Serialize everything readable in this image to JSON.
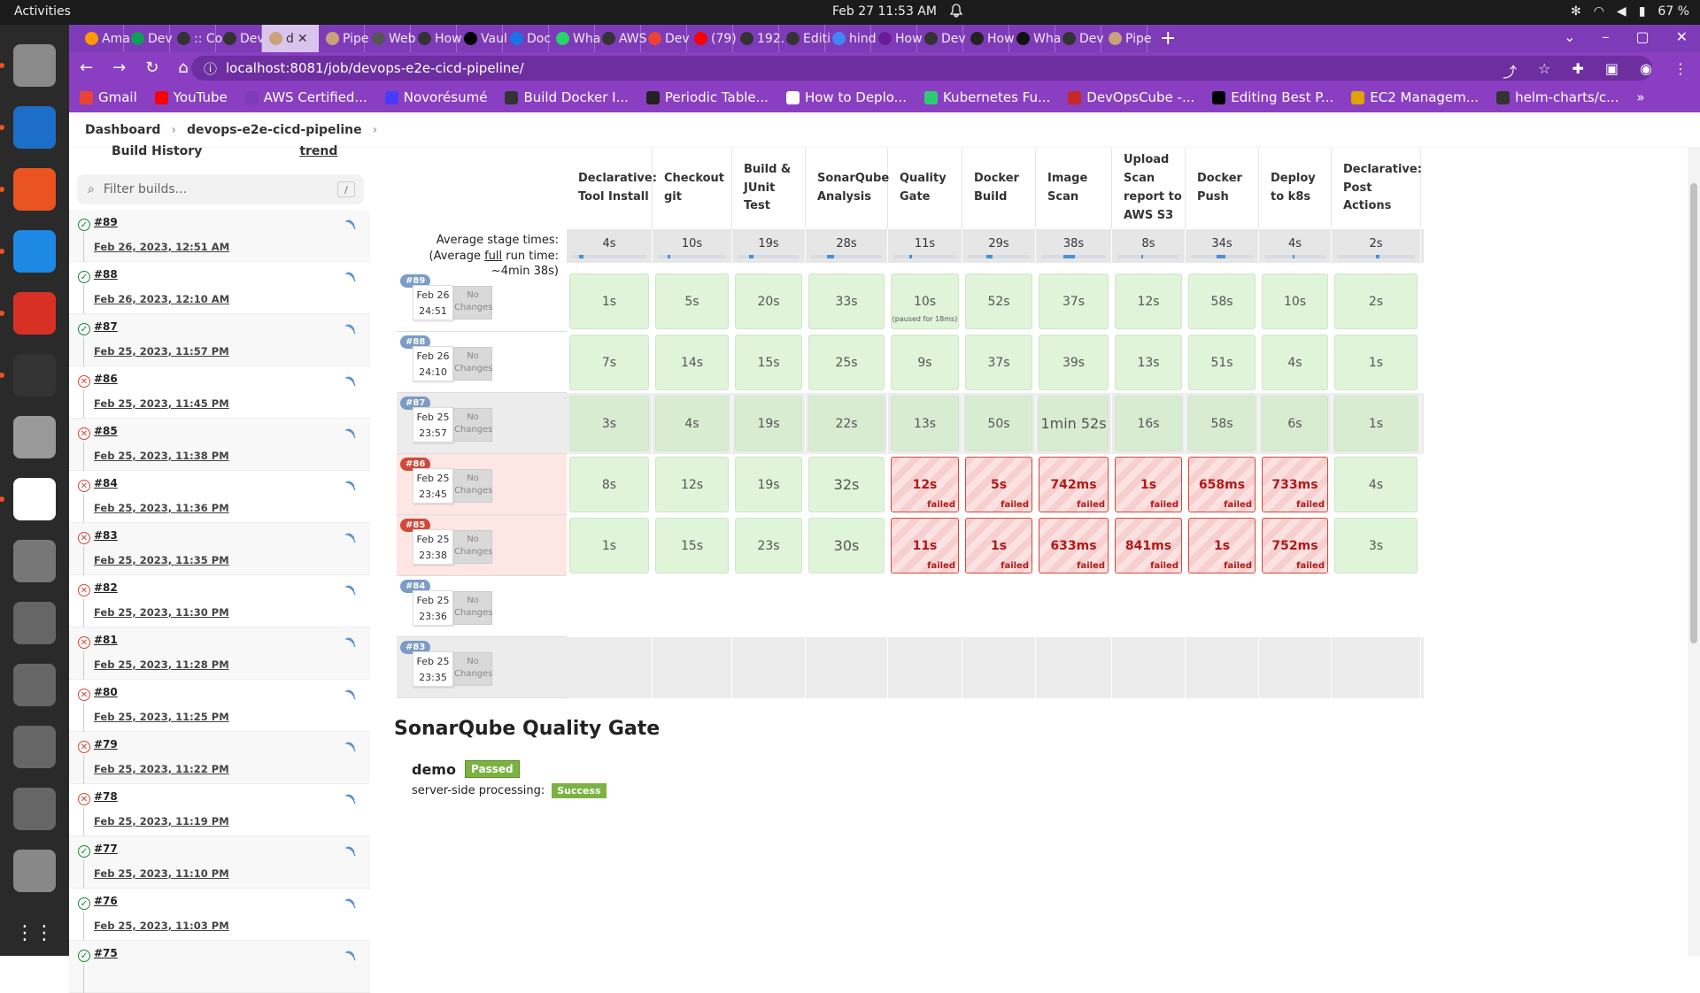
{
  "system": {
    "activities": "Activities",
    "clock": "Feb 27  11:53 AM",
    "battery": "67 %"
  },
  "dock": [
    {
      "name": "files-icon",
      "color": "#8a8a8a"
    },
    {
      "name": "writer-icon",
      "color": "#1c6ec8"
    },
    {
      "name": "software-icon",
      "color": "#e95420"
    },
    {
      "name": "vscode-icon",
      "color": "#1e88e5"
    },
    {
      "name": "chrome-icon",
      "color": "#d93025"
    },
    {
      "name": "terminal-icon",
      "color": "#333"
    },
    {
      "name": "screenshot-icon",
      "color": "#999"
    },
    {
      "name": "slack-icon",
      "color": "#ffffff"
    },
    {
      "name": "editor-icon",
      "color": "#777"
    },
    {
      "name": "disk-icon",
      "color": "#666"
    },
    {
      "name": "disk-icon",
      "color": "#666"
    },
    {
      "name": "disk-icon",
      "color": "#666"
    },
    {
      "name": "disk-icon",
      "color": "#666"
    },
    {
      "name": "drive-icon",
      "color": "#888"
    },
    {
      "name": "apps-grid-icon",
      "color": "#2a2a2a"
    }
  ],
  "tabs": [
    {
      "label": "Ama",
      "color": "#ff9900"
    },
    {
      "label": "Dev",
      "color": "#0f9d58"
    },
    {
      "label": ":: Co",
      "color": "#333"
    },
    {
      "label": "Dev",
      "color": "#333"
    },
    {
      "label": "d",
      "color": "#c9a27a",
      "active": true
    },
    {
      "label": "Pipe",
      "color": "#c9a27a"
    },
    {
      "label": "Web",
      "color": "#555"
    },
    {
      "label": "How",
      "color": "#333"
    },
    {
      "label": "Vaul",
      "color": "#000"
    },
    {
      "label": "Doc",
      "color": "#1a73e8"
    },
    {
      "label": "Wha",
      "color": "#25d366"
    },
    {
      "label": "AWS",
      "color": "#333"
    },
    {
      "label": "Dev",
      "color": "#ea4335"
    },
    {
      "label": "(79)",
      "color": "#ff0000"
    },
    {
      "label": "192.",
      "color": "#333"
    },
    {
      "label": "Editi",
      "color": "#333"
    },
    {
      "label": "hind",
      "color": "#4285f4"
    },
    {
      "label": "How",
      "color": "#6a1b9a"
    },
    {
      "label": "Dev",
      "color": "#333"
    },
    {
      "label": "How",
      "color": "#222"
    },
    {
      "label": "Wha",
      "color": "#111"
    },
    {
      "label": "Dev",
      "color": "#333"
    },
    {
      "label": "Pipe",
      "color": "#c9a27a"
    }
  ],
  "url": "localhost:8081/job/devops-e2e-cicd-pipeline/",
  "bookmarks": [
    {
      "label": "Gmail",
      "color": "#ea4335"
    },
    {
      "label": "YouTube",
      "color": "#ff0000"
    },
    {
      "label": "AWS Certified...",
      "color": "#7e3bb7"
    },
    {
      "label": "Novorésumé",
      "color": "#4a3aff"
    },
    {
      "label": "Build Docker I...",
      "color": "#333"
    },
    {
      "label": "Periodic Table...",
      "color": "#222"
    },
    {
      "label": "How to Deplo...",
      "color": "#fff"
    },
    {
      "label": "Kubernetes Fu...",
      "color": "#2ecc71"
    },
    {
      "label": "DevOpsCube -...",
      "color": "#c62828"
    },
    {
      "label": "Editing Best P...",
      "color": "#000"
    },
    {
      "label": "EC2 Managem...",
      "color": "#e0a400"
    },
    {
      "label": "helm-charts/c...",
      "color": "#333"
    }
  ],
  "breadcrumb": {
    "dashboard": "Dashboard",
    "job": "devops-e2e-cicd-pipeline"
  },
  "sidebar": {
    "title": "Build History",
    "trend": "trend",
    "filter_placeholder": "Filter builds...",
    "filter_shortcut": "/",
    "builds": [
      {
        "num": "#89",
        "date": "Feb 26, 2023, 12:51 AM",
        "ok": true
      },
      {
        "num": "#88",
        "date": "Feb 26, 2023, 12:10 AM",
        "ok": true
      },
      {
        "num": "#87",
        "date": "Feb 25, 2023, 11:57 PM",
        "ok": true
      },
      {
        "num": "#86",
        "date": "Feb 25, 2023, 11:45 PM",
        "ok": false
      },
      {
        "num": "#85",
        "date": "Feb 25, 2023, 11:38 PM",
        "ok": false
      },
      {
        "num": "#84",
        "date": "Feb 25, 2023, 11:36 PM",
        "ok": false
      },
      {
        "num": "#83",
        "date": "Feb 25, 2023, 11:35 PM",
        "ok": false
      },
      {
        "num": "#82",
        "date": "Feb 25, 2023, 11:30 PM",
        "ok": false
      },
      {
        "num": "#81",
        "date": "Feb 25, 2023, 11:28 PM",
        "ok": false
      },
      {
        "num": "#80",
        "date": "Feb 25, 2023, 11:25 PM",
        "ok": false
      },
      {
        "num": "#79",
        "date": "Feb 25, 2023, 11:22 PM",
        "ok": false
      },
      {
        "num": "#78",
        "date": "Feb 25, 2023, 11:19 PM",
        "ok": false
      },
      {
        "num": "#77",
        "date": "Feb 25, 2023, 11:10 PM",
        "ok": true
      },
      {
        "num": "#76",
        "date": "Feb 25, 2023, 11:03 PM",
        "ok": true
      },
      {
        "num": "#75",
        "date": "",
        "ok": true
      }
    ]
  },
  "stage_view": {
    "avg_label_1": "Average stage times:",
    "avg_label_2": "(Average ",
    "avg_label_full": "full",
    "avg_label_3": " run time: ~4min 38s)",
    "stages": [
      {
        "name": "Declarative: Tool Install",
        "avg": "4s",
        "bar": 0.09
      },
      {
        "name": "Checkout git",
        "avg": "10s",
        "bar": 0.06
      },
      {
        "name": "Build & JUnit Test",
        "avg": "19s",
        "bar": 0.14
      },
      {
        "name": "SonarQube Analysis",
        "avg": "28s",
        "bar": 0.18
      },
      {
        "name": "Quality Gate",
        "avg": "11s",
        "bar": 0.06
      },
      {
        "name": "Docker Build",
        "avg": "29s",
        "bar": 0.16
      },
      {
        "name": "Image Scan",
        "avg": "38s",
        "bar": 0.3
      },
      {
        "name": "Upload Scan report to AWS S3",
        "avg": "8s",
        "bar": 0.05
      },
      {
        "name": "Docker Push",
        "avg": "34s",
        "bar": 0.22
      },
      {
        "name": "Deploy to k8s",
        "avg": "4s",
        "bar": 0.03
      },
      {
        "name": "Declarative: Post Actions",
        "avg": "2s",
        "bar": 0.02
      }
    ],
    "runs": [
      {
        "badge": "#89",
        "date": "Feb 26",
        "time": "24:51",
        "changes": "No Changes",
        "status": "ok",
        "cells": [
          {
            "t": "1s"
          },
          {
            "t": "5s"
          },
          {
            "t": "20s"
          },
          {
            "t": "33s"
          },
          {
            "t": "10s",
            "note": "(paused for 18ms)"
          },
          {
            "t": "52s"
          },
          {
            "t": "37s"
          },
          {
            "t": "12s"
          },
          {
            "t": "58s"
          },
          {
            "t": "10s"
          },
          {
            "t": "2s"
          }
        ]
      },
      {
        "badge": "#88",
        "date": "Feb 26",
        "time": "24:10",
        "changes": "No Changes",
        "status": "ok",
        "cells": [
          {
            "t": "7s"
          },
          {
            "t": "14s"
          },
          {
            "t": "15s"
          },
          {
            "t": "25s"
          },
          {
            "t": "9s"
          },
          {
            "t": "37s"
          },
          {
            "t": "39s"
          },
          {
            "t": "13s"
          },
          {
            "t": "51s"
          },
          {
            "t": "4s"
          },
          {
            "t": "1s"
          }
        ]
      },
      {
        "badge": "#87",
        "date": "Feb 25",
        "time": "23:57",
        "changes": "No Changes",
        "status": "ok",
        "grey": true,
        "cells": [
          {
            "t": "3s"
          },
          {
            "t": "4s"
          },
          {
            "t": "19s"
          },
          {
            "t": "22s"
          },
          {
            "t": "13s"
          },
          {
            "t": "50s"
          },
          {
            "t": "1min 52s",
            "big": true
          },
          {
            "t": "16s"
          },
          {
            "t": "58s"
          },
          {
            "t": "6s"
          },
          {
            "t": "1s"
          }
        ]
      },
      {
        "badge": "#86",
        "date": "Feb 25",
        "time": "23:45",
        "changes": "No Changes",
        "status": "failed",
        "cells": [
          {
            "t": "8s"
          },
          {
            "t": "12s"
          },
          {
            "t": "19s"
          },
          {
            "t": "32s",
            "big": true
          },
          {
            "t": "12s",
            "f": true
          },
          {
            "t": "5s",
            "f": true
          },
          {
            "t": "742ms",
            "f": true
          },
          {
            "t": "1s",
            "f": true
          },
          {
            "t": "658ms",
            "f": true
          },
          {
            "t": "733ms",
            "f": true
          },
          {
            "t": "4s"
          }
        ]
      },
      {
        "badge": "#85",
        "date": "Feb 25",
        "time": "23:38",
        "changes": "No Changes",
        "status": "failed",
        "cells": [
          {
            "t": "1s"
          },
          {
            "t": "15s"
          },
          {
            "t": "23s"
          },
          {
            "t": "30s",
            "big": true
          },
          {
            "t": "11s",
            "f": true
          },
          {
            "t": "1s",
            "f": true
          },
          {
            "t": "633ms",
            "f": true
          },
          {
            "t": "841ms",
            "f": true
          },
          {
            "t": "1s",
            "f": true
          },
          {
            "t": "752ms",
            "f": true
          },
          {
            "t": "3s"
          }
        ]
      },
      {
        "badge": "#84",
        "date": "Feb 25",
        "time": "23:36",
        "changes": "No Changes",
        "status": "empty",
        "cells": []
      },
      {
        "badge": "#83",
        "date": "Feb 25",
        "time": "23:35",
        "changes": "No Changes",
        "status": "empty",
        "grey": true,
        "cells": []
      }
    ],
    "failed_label": "failed"
  },
  "quality_gate": {
    "heading": "SonarQube Quality Gate",
    "project": "demo",
    "status": "Passed",
    "processing_label": "server-side processing:",
    "processing_status": "Success"
  }
}
